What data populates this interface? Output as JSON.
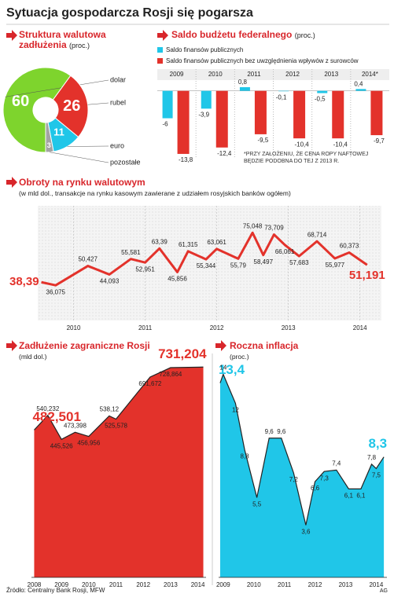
{
  "title": "Sytuacja gospodarcza Rosji się pogarsza",
  "chart_data": [
    {
      "type": "pie",
      "title": "Struktura walutowa zadłużenia",
      "subtitle": "(proc.)",
      "categories": [
        "dolar",
        "rubel",
        "euro",
        "pozostałe"
      ],
      "values": [
        60,
        26,
        11,
        3
      ],
      "colors": [
        "#7ed42d",
        "#e3322b",
        "#20c6e8",
        "#a3a3a3"
      ]
    },
    {
      "type": "bar",
      "title": "Saldo budżetu federalnego",
      "subtitle": "(proc.)",
      "categories": [
        "2009",
        "2010",
        "2011",
        "2012",
        "2013",
        "2014*"
      ],
      "series": [
        {
          "name": "Saldo finansów publicznych",
          "color": "#20c6e8",
          "values": [
            -6,
            -3.9,
            0.8,
            -0.1,
            -0.5,
            0.4
          ],
          "value_labels": [
            "-6",
            "-3,9",
            "0,8",
            "-0,1",
            "-0,5",
            "0,4"
          ]
        },
        {
          "name": "Saldo finansów publicznych bez uwzględnienia wpływów z surowców",
          "color": "#e3322b",
          "values": [
            -13.8,
            -12.4,
            -9.5,
            -10.4,
            -10.4,
            -9.7
          ],
          "value_labels": [
            "-13,8",
            "-12,4",
            "-9,5",
            "-10,4",
            "-10,4",
            "-9,7"
          ]
        }
      ],
      "ylim": [
        -14.5,
        2
      ],
      "note": "*PRZY ZAŁOŻENIU, ŻE CENA ROPY NAFTOWEJ BĘDZIE PODOBNA DO TEJ Z 2013 R."
    },
    {
      "type": "line",
      "title": "Obroty na rynku walutowym",
      "subtitle": "(w mld dol., transakcje na rynku kasowym zawierane z udziałem rosyjskich banków ogółem)",
      "color": "#e3322b",
      "x": [
        2009.55,
        2009.75,
        2010.2,
        2010.5,
        2010.8,
        2011.0,
        2011.2,
        2011.45,
        2011.6,
        2011.85,
        2012.0,
        2012.3,
        2012.5,
        2012.65,
        2012.8,
        2012.95,
        2013.15,
        2013.4,
        2013.65,
        2013.85,
        2014.1
      ],
      "values": [
        38.39,
        36.075,
        50.427,
        44.093,
        55.581,
        52.951,
        63.39,
        45.856,
        61.315,
        55.344,
        63.061,
        55.79,
        75.048,
        58.497,
        73.709,
        66.061,
        57.683,
        68.714,
        55.977,
        60.373,
        51.191
      ],
      "value_labels": [
        "38,39",
        "36,075",
        "50,427",
        "44,093",
        "55,581",
        "52,951",
        "63,39",
        "45,856",
        "61,315",
        "55,344",
        "63,061",
        "55,79",
        "75,048",
        "58,497",
        "73,709",
        "66,061",
        "57,683",
        "68,714",
        "55,977",
        "60,373",
        "51,191"
      ],
      "xlim": [
        2009.5,
        2014.3
      ],
      "xticks": [
        2010,
        2011,
        2012,
        2013,
        2014
      ],
      "ylim": [
        10,
        95
      ]
    },
    {
      "type": "area",
      "title": "Zadłużenie zagraniczne Rosji",
      "subtitle": "(mld dol.)",
      "color": "#e3322b",
      "x": [
        2008.0,
        2008.5,
        2009.0,
        2009.5,
        2010.0,
        2010.75,
        2011.0,
        2012.25,
        2013.0,
        2014.2
      ],
      "values": [
        482.501,
        540.232,
        445.526,
        473.398,
        456.956,
        538.12,
        525.578,
        691.672,
        728.864,
        731.204
      ],
      "value_labels": [
        "482,501",
        "540,232",
        "445,526",
        "473,398",
        "456,956",
        "538,12",
        "525,578",
        "691,672",
        "728,864",
        "731,204"
      ],
      "xlim": [
        2007.9,
        2014.3
      ],
      "xticks": [
        2008,
        2009,
        2010,
        2011,
        2012,
        2013,
        2014
      ],
      "ylim": [
        -100,
        760
      ]
    },
    {
      "type": "area",
      "title": "Roczna inflacja",
      "subtitle": "(proc.)",
      "color": "#20c6e8",
      "x": [
        2008.9,
        2009.0,
        2009.4,
        2009.7,
        2010.1,
        2010.5,
        2010.9,
        2011.3,
        2011.7,
        2012.0,
        2012.3,
        2012.7,
        2013.1,
        2013.5,
        2013.85,
        2014.0,
        2014.25
      ],
      "values": [
        13.4,
        14,
        12,
        8.8,
        5.5,
        9.6,
        9.6,
        7.2,
        3.6,
        6.6,
        7.3,
        7.4,
        6.1,
        6.1,
        7.8,
        7.5,
        8.3
      ],
      "value_labels": [
        "13,4",
        "14",
        "12",
        "8,8",
        "5,5",
        "9,6",
        "9,6",
        "7,2",
        "3,6",
        "6,6",
        "7,3",
        "7,4",
        "6,1",
        "6,1",
        "7,8",
        "7,5",
        "8,3"
      ],
      "xlim": [
        2008.85,
        2014.35
      ],
      "xticks": [
        2009,
        2010,
        2011,
        2012,
        2013,
        2014
      ],
      "ylim": [
        0,
        15
      ]
    }
  ],
  "source": "Źródło: Centralny Bank Rosji, MFW",
  "credit": "AG"
}
